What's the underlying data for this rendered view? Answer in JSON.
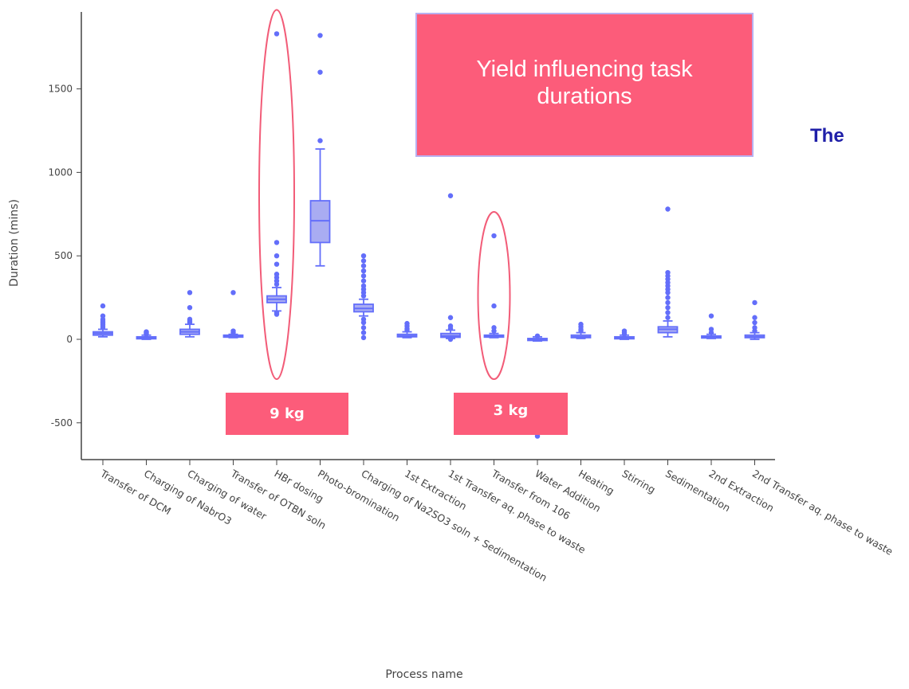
{
  "annotations": {
    "title_box": "Yield influencing task durations",
    "kg_left": "9 kg",
    "kg_right": "3 kg",
    "right_text": "The"
  },
  "colors": {
    "box_fill": "#a9acf2",
    "box_stroke": "#636efa",
    "callout": "#fc5c7a",
    "ellipse": "#f25c78",
    "right_text": "#1f1fa8"
  },
  "chart_data": {
    "type": "box",
    "xlabel": "Process name",
    "ylabel": "Duration (mins)",
    "ylim": [
      -700,
      1950
    ],
    "yticks": [
      -500,
      0,
      500,
      1000,
      1500
    ],
    "ytick_labels": [
      "-500",
      "0",
      "500",
      "1000",
      "1500"
    ],
    "grid": false,
    "categories": [
      "Transfer of DCM",
      "Charging of NabrO3",
      "Charging of water",
      "Transfer of OTBN soln",
      "HBr dosing",
      "Photo-bromination",
      "Charging of Na2SO3 soln + Sedimentation",
      "1st Extraction",
      "1st Transfer aq. phase to waste",
      "Transfer from 106",
      "Water Addition",
      "Heating",
      "Stirring",
      "Sedimentation",
      "2nd Extraction",
      "2nd Transfer aq. phase to waste"
    ],
    "boxes": [
      {
        "whisker_low": 15,
        "q1": 25,
        "median": 35,
        "q3": 45,
        "whisker_high": 60,
        "outliers": [
          70,
          80,
          90,
          100,
          110,
          120,
          140,
          200
        ]
      },
      {
        "whisker_low": 0,
        "q1": 5,
        "median": 10,
        "q3": 15,
        "whisker_high": 25,
        "outliers": [
          30,
          35,
          40,
          45
        ]
      },
      {
        "whisker_low": 15,
        "q1": 30,
        "median": 45,
        "q3": 60,
        "whisker_high": 90,
        "outliers": [
          100,
          110,
          120,
          190,
          280
        ]
      },
      {
        "whisker_low": 10,
        "q1": 15,
        "median": 20,
        "q3": 25,
        "whisker_high": 30,
        "outliers": [
          40,
          50,
          280
        ]
      },
      {
        "whisker_low": 170,
        "q1": 220,
        "median": 240,
        "q3": 260,
        "whisker_high": 310,
        "outliers": [
          150,
          160,
          330,
          350,
          370,
          390,
          450,
          500,
          580,
          1830
        ]
      },
      {
        "whisker_low": 440,
        "q1": 580,
        "median": 710,
        "q3": 830,
        "whisker_high": 1140,
        "outliers": [
          1190,
          1600,
          1820
        ]
      },
      {
        "whisker_low": 140,
        "q1": 165,
        "median": 185,
        "q3": 210,
        "whisker_high": 240,
        "outliers": [
          10,
          40,
          70,
          100,
          120,
          260,
          280,
          300,
          320,
          350,
          380,
          410,
          440,
          470,
          500
        ]
      },
      {
        "whisker_low": 10,
        "q1": 15,
        "median": 20,
        "q3": 30,
        "whisker_high": 45,
        "outliers": [
          55,
          65,
          80,
          95
        ]
      },
      {
        "whisker_low": 5,
        "q1": 12,
        "median": 20,
        "q3": 35,
        "whisker_high": 55,
        "outliers": [
          0,
          65,
          80,
          130,
          860
        ]
      },
      {
        "whisker_low": 10,
        "q1": 15,
        "median": 20,
        "q3": 25,
        "whisker_high": 35,
        "outliers": [
          50,
          70,
          200,
          620
        ]
      },
      {
        "whisker_low": -10,
        "q1": -5,
        "median": 0,
        "q3": 5,
        "whisker_high": 15,
        "outliers": [
          -580,
          20
        ]
      },
      {
        "whisker_low": 5,
        "q1": 10,
        "median": 15,
        "q3": 25,
        "whisker_high": 40,
        "outliers": [
          50,
          60,
          75,
          90
        ]
      },
      {
        "whisker_low": 0,
        "q1": 5,
        "median": 10,
        "q3": 15,
        "whisker_high": 25,
        "outliers": [
          30,
          40,
          50
        ]
      },
      {
        "whisker_low": 15,
        "q1": 40,
        "median": 60,
        "q3": 75,
        "whisker_high": 110,
        "outliers": [
          130,
          160,
          190,
          220,
          250,
          280,
          300,
          320,
          340,
          360,
          380,
          400,
          780
        ]
      },
      {
        "whisker_low": 5,
        "q1": 10,
        "median": 15,
        "q3": 20,
        "whisker_high": 30,
        "outliers": [
          40,
          60,
          140
        ]
      },
      {
        "whisker_low": 0,
        "q1": 10,
        "median": 15,
        "q3": 25,
        "whisker_high": 40,
        "outliers": [
          50,
          70,
          100,
          130,
          220
        ]
      }
    ],
    "highlighted_categories": [
      "HBr dosing",
      "Transfer from 106"
    ]
  }
}
